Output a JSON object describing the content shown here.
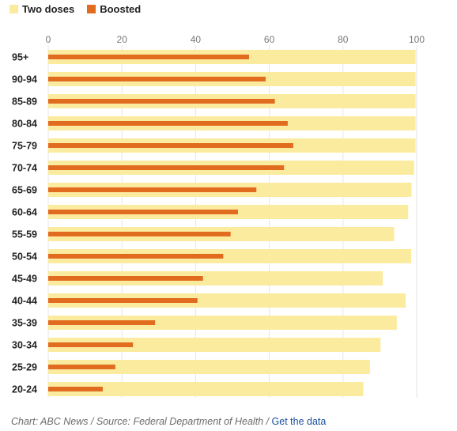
{
  "legend": [
    {
      "name": "Two doses",
      "color": "#fbeb9f"
    },
    {
      "name": "Boosted",
      "color": "#e16b1e"
    }
  ],
  "chart_data": {
    "type": "bar",
    "orientation": "horizontal",
    "categories": [
      "95+",
      "90-94",
      "85-89",
      "80-84",
      "75-79",
      "70-74",
      "65-69",
      "60-64",
      "55-59",
      "50-54",
      "45-49",
      "40-44",
      "35-39",
      "30-34",
      "25-29",
      "20-24"
    ],
    "series": [
      {
        "name": "Two doses",
        "color": "#fbeb9f",
        "values": [
          99.7,
          99.7,
          99.7,
          99.7,
          99.7,
          99.3,
          98.6,
          97.7,
          93.9,
          98.5,
          90.8,
          97.0,
          94.6,
          90.2,
          87.3,
          85.5
        ]
      },
      {
        "name": "Boosted",
        "color": "#e16b1e",
        "values": [
          54.5,
          59.0,
          61.5,
          65.0,
          66.5,
          64.0,
          56.5,
          51.5,
          49.5,
          47.5,
          42.0,
          40.5,
          29.0,
          23.0,
          18.2,
          14.8
        ]
      }
    ],
    "xticks": [
      0,
      20,
      40,
      60,
      80,
      100
    ],
    "xlim": [
      0,
      100
    ],
    "grid": true,
    "legend_position": "top-left"
  },
  "footer": {
    "credit": "Chart: ABC News / Source: Federal Department of Health / ",
    "link": "Get the data"
  }
}
